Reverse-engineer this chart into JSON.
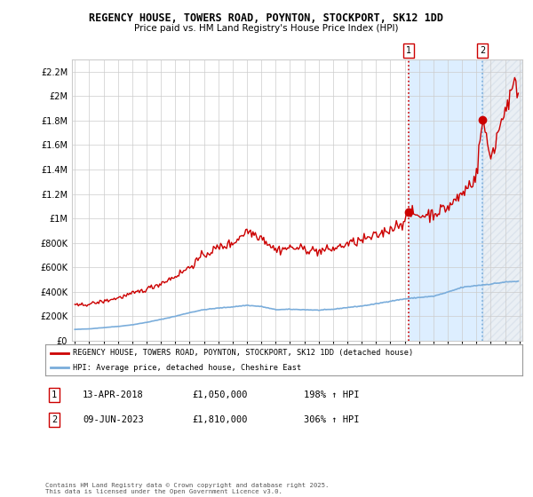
{
  "title": "REGENCY HOUSE, TOWERS ROAD, POYNTON, STOCKPORT, SK12 1DD",
  "subtitle": "Price paid vs. HM Land Registry's House Price Index (HPI)",
  "legend_label_red": "REGENCY HOUSE, TOWERS ROAD, POYNTON, STOCKPORT, SK12 1DD (detached house)",
  "legend_label_blue": "HPI: Average price, detached house, Cheshire East",
  "annotation1_label": "1",
  "annotation1_date": "13-APR-2018",
  "annotation1_price": "£1,050,000",
  "annotation1_hpi": "198% ↑ HPI",
  "annotation2_label": "2",
  "annotation2_date": "09-JUN-2023",
  "annotation2_price": "£1,810,000",
  "annotation2_hpi": "306% ↑ HPI",
  "footer": "Contains HM Land Registry data © Crown copyright and database right 2025.\nThis data is licensed under the Open Government Licence v3.0.",
  "ylim": [
    0,
    2300000
  ],
  "yticks": [
    0,
    200000,
    400000,
    600000,
    800000,
    1000000,
    1200000,
    1400000,
    1600000,
    1800000,
    2000000,
    2200000
  ],
  "red_color": "#cc0000",
  "blue_color": "#7aaddb",
  "shade_color": "#ddeeff",
  "background_color": "#ffffff",
  "grid_color": "#cccccc",
  "sale1_x": 2018.28,
  "sale1_y": 1050000,
  "sale2_x": 2023.44,
  "sale2_y": 1810000,
  "xlim_left": 1994.8,
  "xlim_right": 2026.2
}
